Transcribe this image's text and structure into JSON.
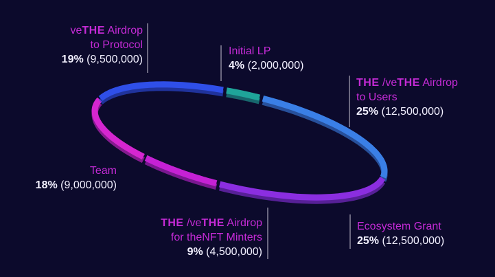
{
  "chart_data": {
    "type": "pie",
    "style": "tilted ring",
    "slices": [
      {
        "name_parts": [
          "Initial LP"
        ],
        "percent_label": "4%",
        "amount_label": "(2,000,000)",
        "value": 2000000,
        "percent": 4,
        "color": "#1fa59a"
      },
      {
        "name_parts": [
          "THE",
          " /ve",
          "THE",
          " Airdrop",
          "to Users"
        ],
        "percent_label": "25%",
        "amount_label": "(12,500,000)",
        "value": 12500000,
        "percent": 25,
        "color": "#3a7fe6"
      },
      {
        "name_parts": [
          "Ecosystem Grant"
        ],
        "percent_label": "25%",
        "amount_label": "(12,500,000)",
        "value": 12500000,
        "percent": 25,
        "color": "#8b2ee0"
      },
      {
        "name_parts": [
          "THE",
          " /ve",
          "THE",
          " Airdrop",
          "for theNFT Minters"
        ],
        "percent_label": "9%",
        "amount_label": "(4,500,000)",
        "value": 4500000,
        "percent": 9,
        "color": "#c521d4"
      },
      {
        "name_parts": [
          "Team"
        ],
        "percent_label": "18%",
        "amount_label": "(9,000,000)",
        "value": 9000000,
        "percent": 18,
        "color": "#d526d0"
      },
      {
        "name_parts": [
          "ve",
          "THE",
          " Airdrop",
          "to Protocol"
        ],
        "percent_label": "19%",
        "amount_label": "(9,500,000)",
        "value": 9500000,
        "percent": 19,
        "color": "#2f4fe8"
      }
    ],
    "legend": "labels around ring"
  }
}
